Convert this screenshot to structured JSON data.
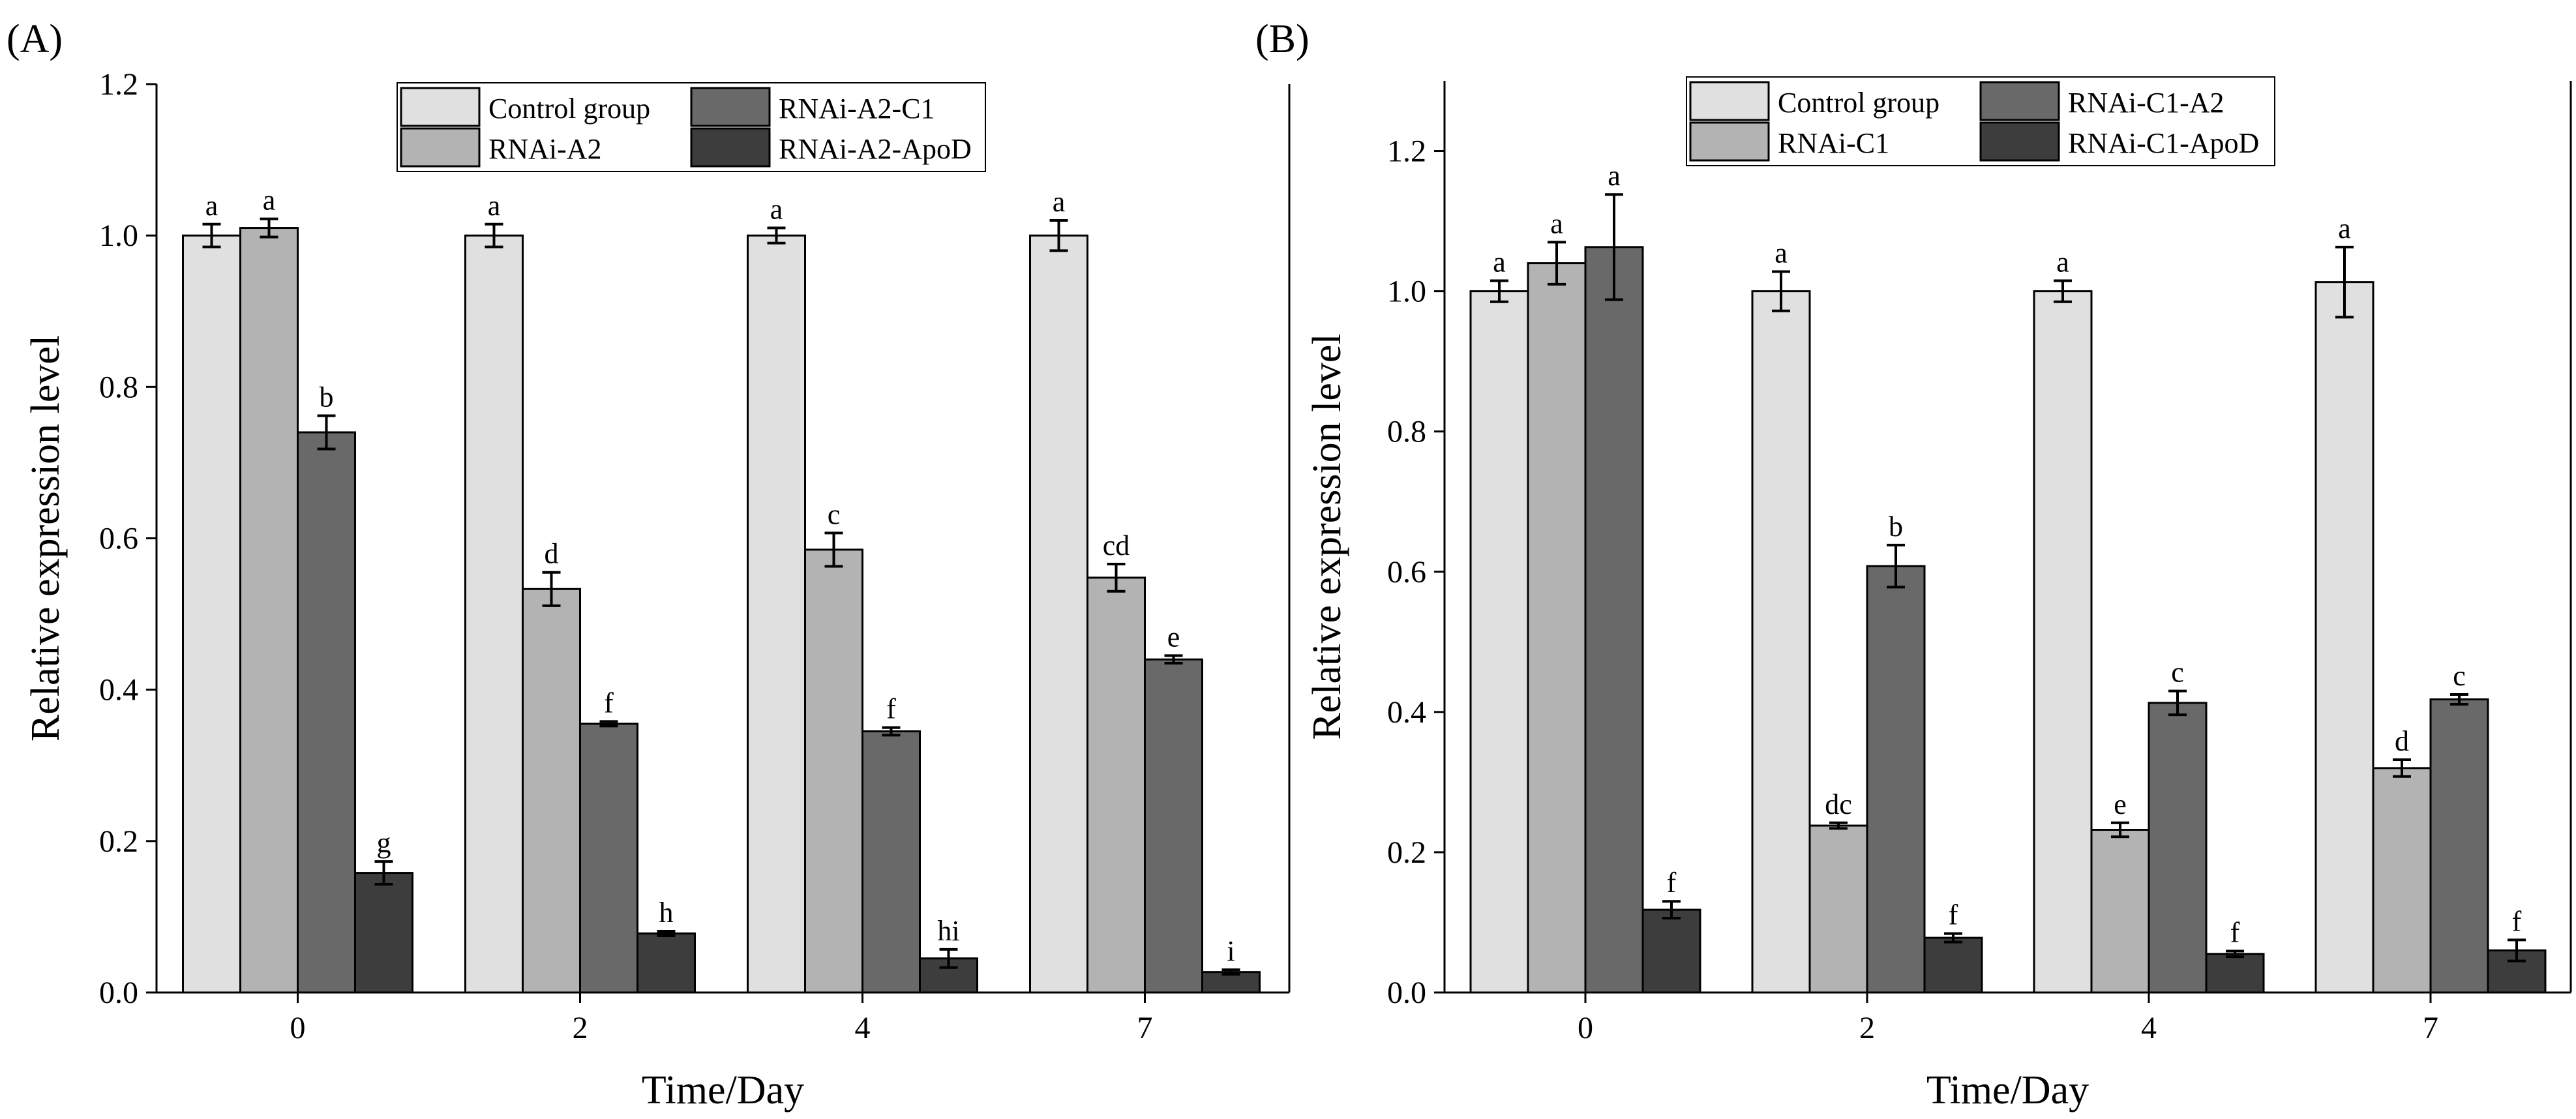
{
  "chart_data": [
    {
      "type": "bar",
      "panel_label": "(A)",
      "xlabel": "Time/Day",
      "ylabel": "Relative expression level",
      "categories": [
        "0",
        "2",
        "4",
        "7"
      ],
      "ylim": [
        0,
        1.2
      ],
      "yticks": [
        "0.0",
        "0.2",
        "0.4",
        "0.6",
        "0.8",
        "1.0",
        "1.2"
      ],
      "legend_position": "top-center",
      "series": [
        {
          "name": "Control group",
          "values": [
            1.0,
            1.0,
            1.0,
            1.0
          ],
          "errors": [
            0.015,
            0.015,
            0.01,
            0.02
          ],
          "letters": [
            "a",
            "a",
            "a",
            "a"
          ]
        },
        {
          "name": "RNAi-A2",
          "values": [
            1.01,
            0.533,
            0.585,
            0.548
          ],
          "errors": [
            0.012,
            0.022,
            0.022,
            0.018
          ],
          "letters": [
            "a",
            "d",
            "c",
            "cd"
          ]
        },
        {
          "name": "RNAi-A2-C1",
          "values": [
            0.74,
            0.355,
            0.345,
            0.44
          ],
          "errors": [
            0.022,
            0.003,
            0.005,
            0.005
          ],
          "letters": [
            "b",
            "f",
            "f",
            "e"
          ]
        },
        {
          "name": "RNAi-A2-ApoD",
          "values": [
            0.158,
            0.078,
            0.045,
            0.027
          ],
          "errors": [
            0.015,
            0.003,
            0.012,
            0.003
          ],
          "letters": [
            "g",
            "h",
            "hi",
            "i"
          ]
        }
      ]
    },
    {
      "type": "bar",
      "panel_label": "(B)",
      "xlabel": "Time/Day",
      "ylabel": "Relative expression level",
      "categories": [
        "0",
        "2",
        "4",
        "7"
      ],
      "ylim": [
        0,
        1.3
      ],
      "yticks": [
        "0.0",
        "0.2",
        "0.4",
        "0.6",
        "0.8",
        "1.0",
        "1.2"
      ],
      "legend_position": "top-center",
      "series": [
        {
          "name": "Control group",
          "values": [
            1.0,
            1.0,
            1.0,
            1.013
          ],
          "errors": [
            0.015,
            0.028,
            0.015,
            0.05
          ],
          "letters": [
            "a",
            "a",
            "a",
            "a"
          ]
        },
        {
          "name": "RNAi-C1",
          "values": [
            1.04,
            0.238,
            0.232,
            0.32
          ],
          "errors": [
            0.03,
            0.004,
            0.01,
            0.012
          ],
          "letters": [
            "a",
            "dc",
            "e",
            "d"
          ]
        },
        {
          "name": "RNAi-C1-A2",
          "values": [
            1.063,
            0.608,
            0.413,
            0.418
          ],
          "errors": [
            0.075,
            0.03,
            0.017,
            0.007
          ],
          "letters": [
            "a",
            "b",
            "c",
            "c"
          ]
        },
        {
          "name": "RNAi-C1-ApoD",
          "values": [
            0.118,
            0.078,
            0.055,
            0.06
          ],
          "errors": [
            0.012,
            0.006,
            0.004,
            0.015
          ],
          "letters": [
            "f",
            "f",
            "f",
            "f"
          ]
        }
      ]
    }
  ],
  "colors": [
    "#e0e0e0",
    "#b3b3b3",
    "#696969",
    "#3d3d3d"
  ]
}
